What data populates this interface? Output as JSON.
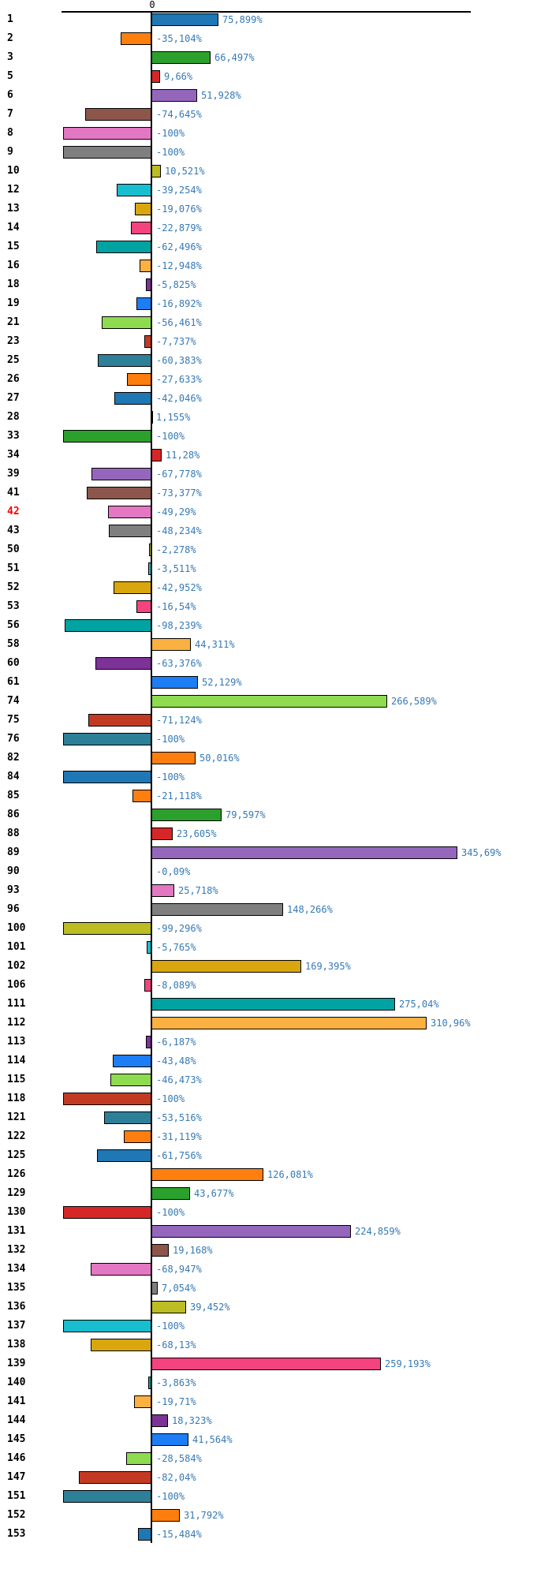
{
  "chart_data": {
    "type": "bar",
    "orientation": "horizontal",
    "title": "",
    "xlabel": "",
    "ylabel": "",
    "value_unit": "%",
    "decimal_separator": ",",
    "zero_tick_label": "0",
    "xlim": [
      -105,
      360
    ],
    "grid": false,
    "legend": "none",
    "value_label_color": "#3579b5",
    "row_label_color": "#000000",
    "highlight_row_label_color": "#ff0000",
    "bar_border_color": "#000000",
    "palette": [
      "#1f77b4",
      "#ff7f0e",
      "#2ca02c",
      "#d62728",
      "#9467bd",
      "#8c564b",
      "#e377c2",
      "#7f7f7f",
      "#bcbd22",
      "#17becf",
      "#d9a60d",
      "#f5437f",
      "#00a2a2",
      "#fbb042",
      "#7d3298",
      "#1d7df4",
      "#8fdb4f",
      "#c33a23",
      "#2e8099",
      "#fd7e0e"
    ],
    "rows": [
      {
        "label": "1",
        "value": 75.899,
        "display": "75,899%",
        "highlight": false
      },
      {
        "label": "2",
        "value": -35.104,
        "display": "-35,104%",
        "highlight": false
      },
      {
        "label": "3",
        "value": 66.497,
        "display": "66,497%",
        "highlight": false
      },
      {
        "label": "5",
        "value": 9.66,
        "display": "9,66%",
        "highlight": false
      },
      {
        "label": "6",
        "value": 51.928,
        "display": "51,928%",
        "highlight": false
      },
      {
        "label": "7",
        "value": -74.645,
        "display": "-74,645%",
        "highlight": false
      },
      {
        "label": "8",
        "value": -100,
        "display": "-100%",
        "highlight": false
      },
      {
        "label": "9",
        "value": -100,
        "display": "-100%",
        "highlight": false
      },
      {
        "label": "10",
        "value": 10.521,
        "display": "10,521%",
        "highlight": false
      },
      {
        "label": "12",
        "value": -39.254,
        "display": "-39,254%",
        "highlight": false
      },
      {
        "label": "13",
        "value": -19.076,
        "display": "-19,076%",
        "highlight": false
      },
      {
        "label": "14",
        "value": -22.879,
        "display": "-22,879%",
        "highlight": false
      },
      {
        "label": "15",
        "value": -62.496,
        "display": "-62,496%",
        "highlight": false
      },
      {
        "label": "16",
        "value": -12.948,
        "display": "-12,948%",
        "highlight": false
      },
      {
        "label": "18",
        "value": -5.825,
        "display": "-5,825%",
        "highlight": false
      },
      {
        "label": "19",
        "value": -16.892,
        "display": "-16,892%",
        "highlight": false
      },
      {
        "label": "21",
        "value": -56.461,
        "display": "-56,461%",
        "highlight": false
      },
      {
        "label": "23",
        "value": -7.737,
        "display": "-7,737%",
        "highlight": false
      },
      {
        "label": "25",
        "value": -60.383,
        "display": "-60,383%",
        "highlight": false
      },
      {
        "label": "26",
        "value": -27.633,
        "display": "-27,633%",
        "highlight": false
      },
      {
        "label": "27",
        "value": -42.046,
        "display": "-42,046%",
        "highlight": false
      },
      {
        "label": "28",
        "value": 1.155,
        "display": "1,155%",
        "highlight": false
      },
      {
        "label": "33",
        "value": -100,
        "display": "-100%",
        "highlight": false
      },
      {
        "label": "34",
        "value": 11.28,
        "display": "11,28%",
        "highlight": false
      },
      {
        "label": "39",
        "value": -67.778,
        "display": "-67,778%",
        "highlight": false
      },
      {
        "label": "41",
        "value": -73.377,
        "display": "-73,377%",
        "highlight": false
      },
      {
        "label": "42",
        "value": -49.29,
        "display": "-49,29%",
        "highlight": true
      },
      {
        "label": "43",
        "value": -48.234,
        "display": "-48,234%",
        "highlight": false
      },
      {
        "label": "50",
        "value": -2.278,
        "display": "-2,278%",
        "highlight": false
      },
      {
        "label": "51",
        "value": -3.511,
        "display": "-3,511%",
        "highlight": false
      },
      {
        "label": "52",
        "value": -42.952,
        "display": "-42,952%",
        "highlight": false
      },
      {
        "label": "53",
        "value": -16.54,
        "display": "-16,54%",
        "highlight": false
      },
      {
        "label": "56",
        "value": -98.239,
        "display": "-98,239%",
        "highlight": false
      },
      {
        "label": "58",
        "value": 44.311,
        "display": "44,311%",
        "highlight": false
      },
      {
        "label": "60",
        "value": -63.376,
        "display": "-63,376%",
        "highlight": false
      },
      {
        "label": "61",
        "value": 52.129,
        "display": "52,129%",
        "highlight": false
      },
      {
        "label": "74",
        "value": 266.589,
        "display": "266,589%",
        "highlight": false
      },
      {
        "label": "75",
        "value": -71.124,
        "display": "-71,124%",
        "highlight": false
      },
      {
        "label": "76",
        "value": -100,
        "display": "-100%",
        "highlight": false
      },
      {
        "label": "82",
        "value": 50.016,
        "display": "50,016%",
        "highlight": false
      },
      {
        "label": "84",
        "value": -100,
        "display": "-100%",
        "highlight": false
      },
      {
        "label": "85",
        "value": -21.118,
        "display": "-21,118%",
        "highlight": false
      },
      {
        "label": "86",
        "value": 79.597,
        "display": "79,597%",
        "highlight": false
      },
      {
        "label": "88",
        "value": 23.605,
        "display": "23,605%",
        "highlight": false
      },
      {
        "label": "89",
        "value": 345.69,
        "display": "345,69%",
        "highlight": false
      },
      {
        "label": "90",
        "value": -0.09,
        "display": "-0,09%",
        "highlight": false
      },
      {
        "label": "93",
        "value": 25.718,
        "display": "25,718%",
        "highlight": false
      },
      {
        "label": "96",
        "value": 148.266,
        "display": "148,266%",
        "highlight": false
      },
      {
        "label": "100",
        "value": -99.296,
        "display": "-99,296%",
        "highlight": false
      },
      {
        "label": "101",
        "value": -5.765,
        "display": "-5,765%",
        "highlight": false
      },
      {
        "label": "102",
        "value": 169.395,
        "display": "169,395%",
        "highlight": false
      },
      {
        "label": "106",
        "value": -8.089,
        "display": "-8,089%",
        "highlight": false
      },
      {
        "label": "111",
        "value": 275.04,
        "display": "275,04%",
        "highlight": false
      },
      {
        "label": "112",
        "value": 310.96,
        "display": "310,96%",
        "highlight": false
      },
      {
        "label": "113",
        "value": -6.187,
        "display": "-6,187%",
        "highlight": false
      },
      {
        "label": "114",
        "value": -43.48,
        "display": "-43,48%",
        "highlight": false
      },
      {
        "label": "115",
        "value": -46.473,
        "display": "-46,473%",
        "highlight": false
      },
      {
        "label": "118",
        "value": -100,
        "display": "-100%",
        "highlight": false
      },
      {
        "label": "121",
        "value": -53.516,
        "display": "-53,516%",
        "highlight": false
      },
      {
        "label": "122",
        "value": -31.119,
        "display": "-31,119%",
        "highlight": false
      },
      {
        "label": "125",
        "value": -61.756,
        "display": "-61,756%",
        "highlight": false
      },
      {
        "label": "126",
        "value": 126.081,
        "display": "126,081%",
        "highlight": false
      },
      {
        "label": "129",
        "value": 43.677,
        "display": "43,677%",
        "highlight": false
      },
      {
        "label": "130",
        "value": -100,
        "display": "-100%",
        "highlight": false
      },
      {
        "label": "131",
        "value": 224.859,
        "display": "224,859%",
        "highlight": false
      },
      {
        "label": "132",
        "value": 19.168,
        "display": "19,168%",
        "highlight": false
      },
      {
        "label": "134",
        "value": -68.947,
        "display": "-68,947%",
        "highlight": false
      },
      {
        "label": "135",
        "value": 7.054,
        "display": "7,054%",
        "highlight": false
      },
      {
        "label": "136",
        "value": 39.452,
        "display": "39,452%",
        "highlight": false
      },
      {
        "label": "137",
        "value": -100,
        "display": "-100%",
        "highlight": false
      },
      {
        "label": "138",
        "value": -68.13,
        "display": "-68,13%",
        "highlight": false
      },
      {
        "label": "139",
        "value": 259.193,
        "display": "259,193%",
        "highlight": false
      },
      {
        "label": "140",
        "value": -3.863,
        "display": "-3,863%",
        "highlight": false
      },
      {
        "label": "141",
        "value": -19.71,
        "display": "-19,71%",
        "highlight": false
      },
      {
        "label": "144",
        "value": 18.323,
        "display": "18,323%",
        "highlight": false
      },
      {
        "label": "145",
        "value": 41.564,
        "display": "41,564%",
        "highlight": false
      },
      {
        "label": "146",
        "value": -28.584,
        "display": "-28,584%",
        "highlight": false
      },
      {
        "label": "147",
        "value": -82.04,
        "display": "-82,04%",
        "highlight": false
      },
      {
        "label": "151",
        "value": -100,
        "display": "-100%",
        "highlight": false
      },
      {
        "label": "152",
        "value": 31.792,
        "display": "31,792%",
        "highlight": false
      },
      {
        "label": "153",
        "value": -15.484,
        "display": "-15,484%",
        "highlight": false
      }
    ]
  }
}
